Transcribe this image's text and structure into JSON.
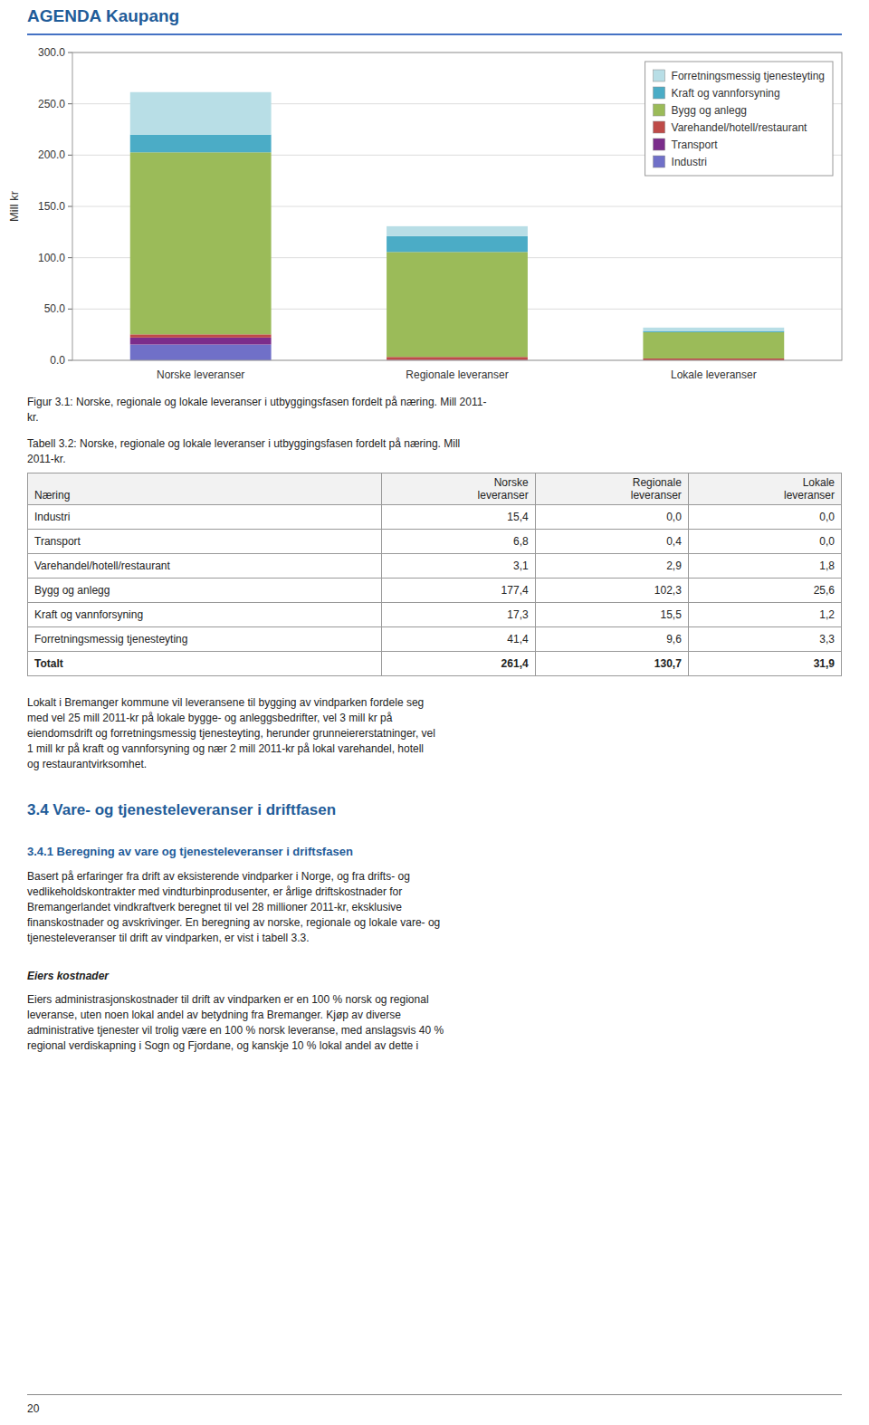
{
  "chart_data": {
    "type": "bar",
    "stacked": true,
    "categories": [
      "Norske leveranser",
      "Regionale leveranser",
      "Lokale leveranser"
    ],
    "series": [
      {
        "name": "Industri",
        "color": "#7070C8",
        "values": [
          15.4,
          0.0,
          0.0
        ]
      },
      {
        "name": "Transport",
        "color": "#7B2D8B",
        "values": [
          6.8,
          0.4,
          0.0
        ]
      },
      {
        "name": "Varehandel/hotell/restaurant",
        "color": "#BE4B48",
        "values": [
          3.1,
          2.9,
          1.8
        ]
      },
      {
        "name": "Bygg og anlegg",
        "color": "#9BBB59",
        "values": [
          177.4,
          102.3,
          25.6
        ]
      },
      {
        "name": "Kraft og vannforsyning",
        "color": "#4BACC6",
        "values": [
          17.3,
          15.5,
          1.2
        ]
      },
      {
        "name": "Forretningsmessig tjenesteyting",
        "color": "#B8DEE6",
        "values": [
          41.4,
          9.6,
          3.3
        ]
      }
    ],
    "ylabel": "Mill kr",
    "ylim": [
      0,
      300
    ],
    "yticks": [
      {
        "value": 0,
        "label": "0.0"
      },
      {
        "value": 50,
        "label": "50.0"
      },
      {
        "value": 100,
        "label": "100.0"
      },
      {
        "value": 150,
        "label": "150.0"
      },
      {
        "value": 200,
        "label": "200.0"
      },
      {
        "value": 250,
        "label": "250.0"
      },
      {
        "value": 300,
        "label": "300.0"
      }
    ],
    "grid": true,
    "legend": "upper right"
  },
  "page": {
    "header": "AGENDA Kaupang",
    "figure_caption": "Figur 3.1: Norske, regionale og lokale leveranser i utbyggingsfasen fordelt på næring. Mill 2011-\nkr.",
    "table_caption": "Tabell 3.2: Norske, regionale og lokale leveranser i utbyggingsfasen fordelt på næring. Mill\n2011-kr.",
    "table_header": [
      "Næring",
      "Norske\nleveranser",
      "Regionale\nleveranser",
      "Lokale\nleveranser"
    ],
    "table_rows": [
      [
        "Industri",
        "15,4",
        "0,0",
        "0,0"
      ],
      [
        "Transport",
        "6,8",
        "0,4",
        "0,0"
      ],
      [
        "Varehandel/hotell/restaurant",
        "3,1",
        "2,9",
        "1,8"
      ],
      [
        "Bygg og anlegg",
        "177,4",
        "102,3",
        "25,6"
      ],
      [
        "Kraft og vannforsyning",
        "17,3",
        "15,5",
        "1,2"
      ],
      [
        "Forretningsmessig tjenesteyting",
        "41,4",
        "9,6",
        "3,3"
      ],
      [
        "Totalt",
        "261,4",
        "130,7",
        "31,9"
      ]
    ],
    "body_text": "Lokalt i Bremanger kommune vil leveransene til bygging av vindparken fordele seg\nmed vel 25 mill 2011-kr på lokale bygge- og anleggsbedrifter, vel 3 mill kr på\neiendomsdrift og forretningsmessig tjenesteyting, herunder grunneiererstatninger, vel\n1 mill kr på kraft og vannforsyning og nær 2 mill 2011-kr på lokal varehandel, hotell\nog restaurantvirksomhet.",
    "section_34_title": "3.4   Vare- og tjenesteleveranser i driftfasen",
    "section_341_title": "3.4.1   Beregning av vare og tjenesteleveranser i driftsfasen",
    "section_341_body": "Basert på erfaringer fra drift av eksisterende vindparker i Norge, og fra drifts- og\nvedlikeholdskontrakter med vindturbinprodusenter, er årlige driftskostnader for\nBremangerlandet vindkraftverk beregnet til vel 28 millioner 2011-kr, eksklusive\nfinanskostnader og avskrivinger. En beregning av norske, regionale og lokale vare- og\ntjenesteleveranser til drift av vindparken, er vist i tabell 3.3.",
    "eiers_title": "Eiers kostnader",
    "eiers_body": "Eiers administrasjonskostnader til drift av vindparken er en 100 % norsk og regional\nleveranse, uten noen lokal andel av betydning fra Bremanger. Kjøp av diverse\nadministrative tjenester vil trolig være en 100 % norsk leveranse, med anslagsvis 40 %\nregional verdiskapning i Sogn og Fjordane, og kanskje 10 % lokal andel av dette i",
    "footer_text": "20"
  }
}
